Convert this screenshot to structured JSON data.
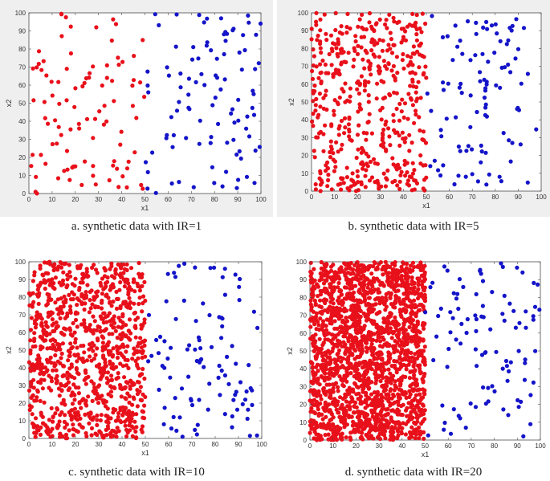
{
  "figure": {
    "captions": [
      "a. synthetic data with IR=1",
      "b. synthetic data with IR=5",
      "c. synthetic data with IR=10",
      "d. synthetic data with IR=20"
    ]
  },
  "chart_data": [
    {
      "type": "scatter",
      "xlabel": "x1",
      "ylabel": "x2",
      "xlim": [
        0,
        100
      ],
      "ylim": [
        0,
        100
      ],
      "x_ticks": [
        "0",
        "10",
        "20",
        "30",
        "40",
        "50",
        "60",
        "70",
        "80",
        "90",
        "100"
      ],
      "y_ticks": [
        "0",
        "10",
        "20",
        "30",
        "40",
        "50",
        "60",
        "70",
        "80",
        "90",
        "100"
      ],
      "grid": false,
      "colors": {
        "minority": "#e8101a",
        "majority": "#1414c8"
      },
      "series": [
        {
          "class": "red",
          "color": "#e8101a",
          "x_range": [
            0,
            50
          ],
          "count": 100
        },
        {
          "class": "blue",
          "color": "#1414c8",
          "x_range": [
            50,
            100
          ],
          "count": 100
        }
      ]
    },
    {
      "type": "scatter",
      "xlabel": "x1",
      "ylabel": "x2",
      "xlim": [
        0,
        100
      ],
      "ylim": [
        0,
        100
      ],
      "x_ticks": [
        "0",
        "10",
        "20",
        "30",
        "40",
        "50",
        "60",
        "70",
        "80",
        "90",
        "100"
      ],
      "y_ticks": [
        "0",
        "10",
        "20",
        "30",
        "40",
        "50",
        "60",
        "70",
        "80",
        "90",
        "100"
      ],
      "grid": false,
      "series": [
        {
          "class": "red",
          "color": "#e8101a",
          "x_range": [
            0,
            50
          ],
          "count": 500
        },
        {
          "class": "blue",
          "color": "#1414c8",
          "x_range": [
            50,
            100
          ],
          "count": 100
        }
      ]
    },
    {
      "type": "scatter",
      "xlabel": "x1",
      "ylabel": "x2",
      "xlim": [
        0,
        100
      ],
      "ylim": [
        0,
        100
      ],
      "x_ticks": [
        "0",
        "10",
        "20",
        "30",
        "40",
        "50",
        "60",
        "70",
        "80",
        "90",
        "100"
      ],
      "y_ticks": [
        "0",
        "10",
        "20",
        "30",
        "40",
        "50",
        "60",
        "70",
        "80",
        "90",
        "100"
      ],
      "grid": false,
      "series": [
        {
          "class": "red",
          "color": "#e8101a",
          "x_range": [
            0,
            50
          ],
          "count": 1000
        },
        {
          "class": "blue",
          "color": "#1414c8",
          "x_range": [
            50,
            100
          ],
          "count": 100
        }
      ]
    },
    {
      "type": "scatter",
      "xlabel": "x1",
      "ylabel": "x2",
      "xlim": [
        0,
        100
      ],
      "ylim": [
        0,
        100
      ],
      "x_ticks": [
        "0",
        "10",
        "20",
        "30",
        "40",
        "50",
        "60",
        "70",
        "80",
        "90",
        "100"
      ],
      "y_ticks": [
        "0",
        "10",
        "20",
        "30",
        "40",
        "50",
        "60",
        "70",
        "80",
        "90",
        "100"
      ],
      "grid": false,
      "series": [
        {
          "class": "red",
          "color": "#e8101a",
          "x_range": [
            0,
            50
          ],
          "count": 2000
        },
        {
          "class": "blue",
          "color": "#1414c8",
          "x_range": [
            50,
            100
          ],
          "count": 100
        }
      ]
    }
  ]
}
